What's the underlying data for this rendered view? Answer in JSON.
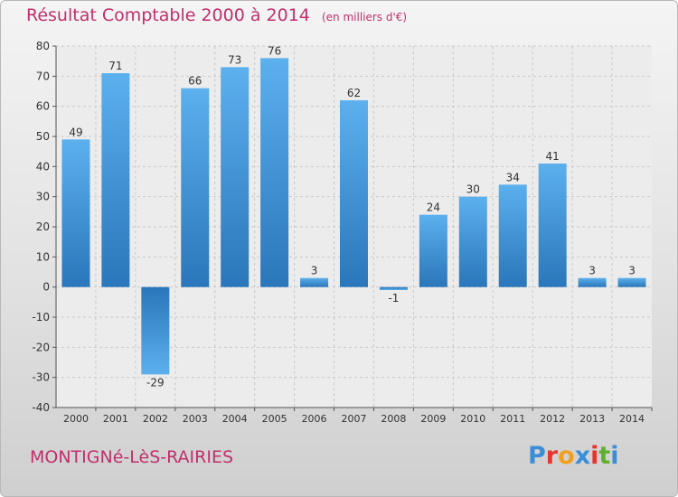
{
  "title": "Résultat Comptable 2000 à 2014",
  "unit_label": "(en milliers d'€)",
  "commune": "MONTIGNé-LèS-RAIRIES",
  "logo": {
    "text": "Proxiti",
    "colors": [
      "#3a8ed8",
      "#e8342c",
      "#f0a020",
      "#3a8ed8",
      "#e8342c",
      "#60b030",
      "#3a8ed8"
    ]
  },
  "chart_data": {
    "type": "bar",
    "categories": [
      "2000",
      "2001",
      "2002",
      "2003",
      "2004",
      "2005",
      "2006",
      "2007",
      "2008",
      "2009",
      "2010",
      "2011",
      "2012",
      "2013",
      "2014"
    ],
    "values": [
      49,
      71,
      -29,
      66,
      73,
      76,
      3,
      62,
      -1,
      24,
      30,
      34,
      41,
      3,
      3
    ],
    "ylim": [
      -40,
      80
    ],
    "yticks": [
      -40,
      -30,
      -20,
      -10,
      0,
      10,
      20,
      30,
      40,
      50,
      60,
      70,
      80
    ],
    "grid": true,
    "bar_color": "#3d8fd6"
  }
}
